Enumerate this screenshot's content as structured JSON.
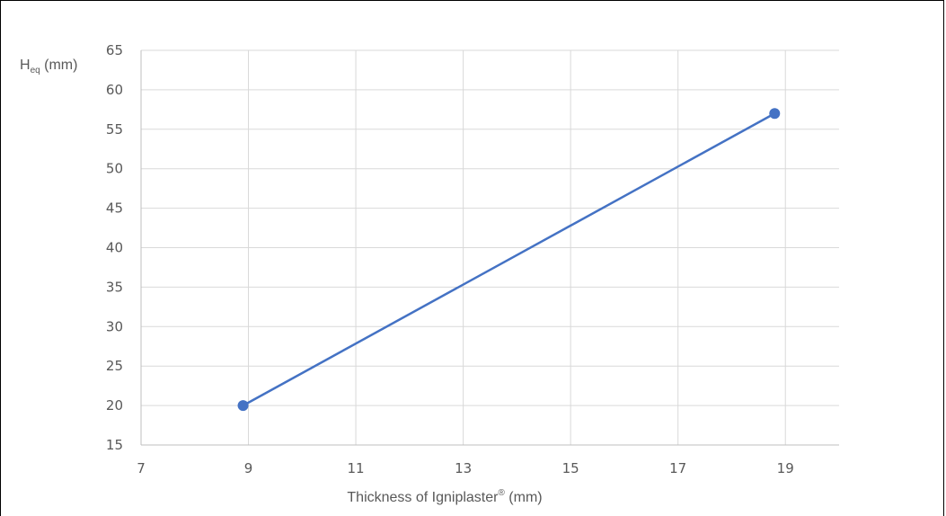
{
  "chart_data": {
    "type": "line",
    "title": "",
    "xlabel": "Thickness of Igniplaster",
    "xlabel_sup": "®",
    "xlabel_unit": " (mm)",
    "ylabel_main": "H",
    "ylabel_sub": "eq",
    "ylabel_unit": " (mm)",
    "xlim": [
      7,
      20
    ],
    "ylim": [
      15,
      65
    ],
    "xticks": [
      7,
      9,
      11,
      13,
      15,
      17,
      19
    ],
    "xtick_labels": [
      "7",
      "9",
      "11",
      "13",
      "15",
      "17",
      "19"
    ],
    "yticks": [
      15,
      20,
      25,
      30,
      35,
      40,
      45,
      50,
      55,
      60,
      65
    ],
    "ytick_labels": [
      "15",
      "20",
      "25",
      "30",
      "35",
      "40",
      "45",
      "50",
      "55",
      "60",
      "65"
    ],
    "grid": true,
    "legend": "none",
    "series": [
      {
        "color": "#4472C4",
        "points": [
          {
            "x": 8.9,
            "y": 20
          },
          {
            "x": 18.8,
            "y": 57
          }
        ]
      }
    ]
  }
}
